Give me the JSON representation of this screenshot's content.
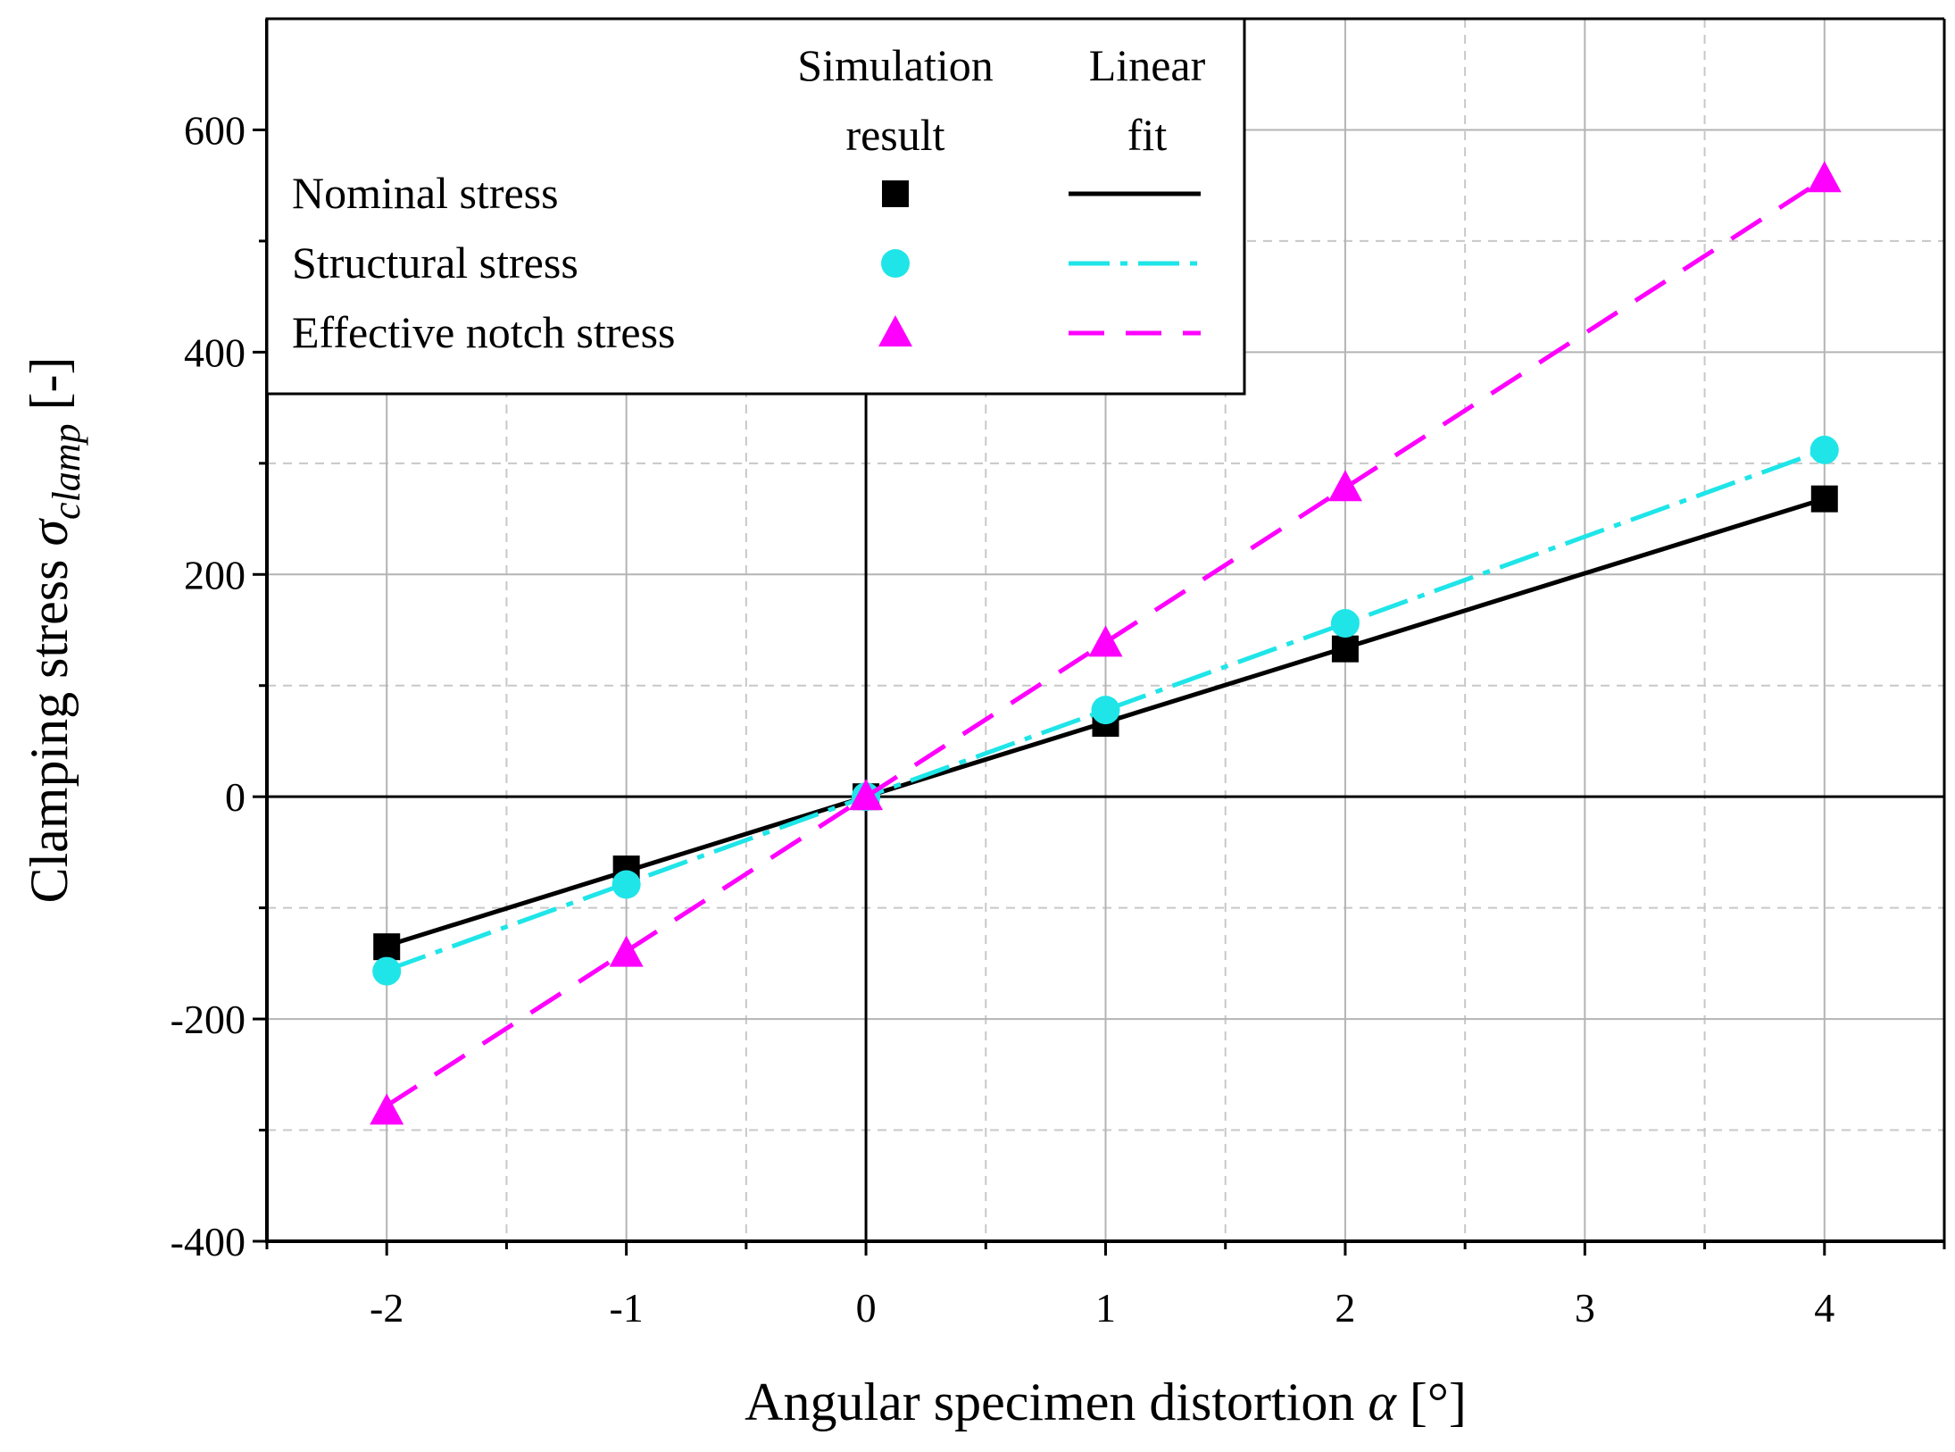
{
  "chart_data": {
    "type": "line",
    "xlabel": {
      "main": "Angular specimen distortion ",
      "symbol": "α",
      "unit": " [°]"
    },
    "ylabel": {
      "main": "Clamping stress ",
      "symbol": "σ",
      "subscript": "clamp",
      "unit": " [-]"
    },
    "xlim": [
      -2.5,
      4.5
    ],
    "ylim": [
      -400,
      700
    ],
    "x_ticks": [
      -2,
      -1,
      0,
      1,
      2,
      3,
      4
    ],
    "y_ticks": [
      -400,
      -200,
      0,
      200,
      400,
      600
    ],
    "grid": true,
    "legend": {
      "placement": "top-left",
      "col_headers": [
        "Simulation",
        "result",
        "Linear",
        "fit"
      ]
    },
    "series": [
      {
        "name": "Nominal stress",
        "marker": "square",
        "line_style": "solid",
        "color": "#000000",
        "x": [
          -2,
          -1,
          0,
          1,
          2,
          4
        ],
        "y": [
          -135,
          -65,
          0,
          66,
          133,
          268
        ],
        "fit": [
          [
            -2,
            -134
          ],
          [
            4,
            268
          ]
        ]
      },
      {
        "name": "Structural stress",
        "marker": "circle",
        "line_style": "dash-dot",
        "color": "#1fe5e8",
        "x": [
          -2,
          -1,
          0,
          1,
          2,
          4
        ],
        "y": [
          -157,
          -79,
          0,
          78,
          156,
          312
        ],
        "fit": [
          [
            -2,
            -156
          ],
          [
            4,
            312
          ]
        ]
      },
      {
        "name": "Effective notch stress",
        "marker": "triangle",
        "line_style": "dashed",
        "color": "#ff00ff",
        "x": [
          -2,
          -1,
          0,
          1,
          2,
          4
        ],
        "y": [
          -283,
          -141,
          0,
          138,
          278,
          556
        ],
        "fit": [
          [
            -2,
            -278
          ],
          [
            4,
            556
          ]
        ]
      }
    ]
  }
}
